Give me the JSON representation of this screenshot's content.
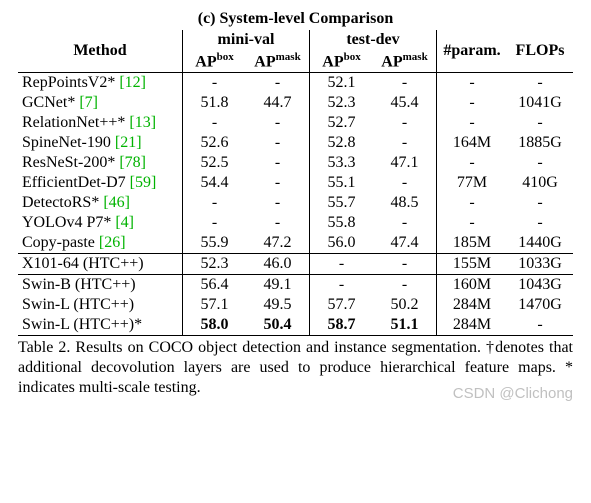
{
  "title": "(c) System-level Comparison",
  "headers": {
    "method": "Method",
    "minival": "mini-val",
    "testdev": "test-dev",
    "apbox": "APbox",
    "apmask": "APmask",
    "param": "#param.",
    "flops": "FLOPs"
  },
  "rows": [
    {
      "method": "RepPointsV2* ",
      "refText": "[12]",
      "ref": "12",
      "mv_box": "-",
      "mv_mask": "-",
      "td_box": "52.1",
      "td_mask": "-",
      "param": "-",
      "flops": "-",
      "group": 0
    },
    {
      "method": "GCNet* ",
      "refText": "[7]",
      "ref": "7",
      "mv_box": "51.8",
      "mv_mask": "44.7",
      "td_box": "52.3",
      "td_mask": "45.4",
      "param": "-",
      "flops": "1041G",
      "group": 0
    },
    {
      "method": "RelationNet++* ",
      "refText": "[13]",
      "ref": "13",
      "mv_box": "-",
      "mv_mask": "-",
      "td_box": "52.7",
      "td_mask": "-",
      "param": "-",
      "flops": "-",
      "group": 0
    },
    {
      "method": "SpineNet-190 ",
      "refText": "[21]",
      "ref": "21",
      "mv_box": "52.6",
      "mv_mask": "-",
      "td_box": "52.8",
      "td_mask": "-",
      "param": "164M",
      "flops": "1885G",
      "group": 0
    },
    {
      "method": "ResNeSt-200* ",
      "refText": "[78]",
      "ref": "78",
      "mv_box": "52.5",
      "mv_mask": "-",
      "td_box": "53.3",
      "td_mask": "47.1",
      "param": "-",
      "flops": "-",
      "group": 0
    },
    {
      "method": "EfficientDet-D7 ",
      "refText": "[59]",
      "ref": "59",
      "mv_box": "54.4",
      "mv_mask": "-",
      "td_box": "55.1",
      "td_mask": "-",
      "param": "77M",
      "flops": "410G",
      "group": 0
    },
    {
      "method": "DetectoRS* ",
      "refText": "[46]",
      "ref": "46",
      "mv_box": "-",
      "mv_mask": "-",
      "td_box": "55.7",
      "td_mask": "48.5",
      "param": "-",
      "flops": "-",
      "group": 0
    },
    {
      "method": "YOLOv4 P7* ",
      "refText": "[4]",
      "ref": "4",
      "mv_box": "-",
      "mv_mask": "-",
      "td_box": "55.8",
      "td_mask": "-",
      "param": "-",
      "flops": "-",
      "group": 0
    },
    {
      "method": "Copy-paste ",
      "refText": "[26]",
      "ref": "26",
      "mv_box": "55.9",
      "mv_mask": "47.2",
      "td_box": "56.0",
      "td_mask": "47.4",
      "param": "185M",
      "flops": "1440G",
      "group": 0
    },
    {
      "method": "X101-64 (HTC++)",
      "refText": "",
      "ref": "",
      "mv_box": "52.3",
      "mv_mask": "46.0",
      "td_box": "-",
      "td_mask": "-",
      "param": "155M",
      "flops": "1033G",
      "group": 1
    },
    {
      "method": "Swin-B (HTC++)",
      "refText": "",
      "ref": "",
      "mv_box": "56.4",
      "mv_mask": "49.1",
      "td_box": "-",
      "td_mask": "-",
      "param": "160M",
      "flops": "1043G",
      "group": 2
    },
    {
      "method": "Swin-L (HTC++)",
      "refText": "",
      "ref": "",
      "mv_box": "57.1",
      "mv_mask": "49.5",
      "td_box": "57.7",
      "td_mask": "50.2",
      "param": "284M",
      "flops": "1470G",
      "group": 2
    },
    {
      "method": "Swin-L (HTC++)*",
      "refText": "",
      "ref": "",
      "mv_box": "58.0",
      "mv_mask": "50.4",
      "td_box": "58.7",
      "td_mask": "51.1",
      "param": "284M",
      "flops": "-",
      "group": 2,
      "bold": true
    }
  ],
  "caption": "Table 2. Results on COCO object detection and instance segmentation. †denotes that additional decovolution layers are used to produce hierarchical feature maps. * indicates multi-scale testing.",
  "watermark": "CSDN @Clichong",
  "colors": {
    "ref": "#00b300",
    "text": "#000000",
    "bg": "#ffffff",
    "watermark": "rgba(140,140,140,0.55)"
  },
  "fonts": {
    "body": "Times New Roman",
    "size_pt": 16,
    "sup_pt": 11
  }
}
